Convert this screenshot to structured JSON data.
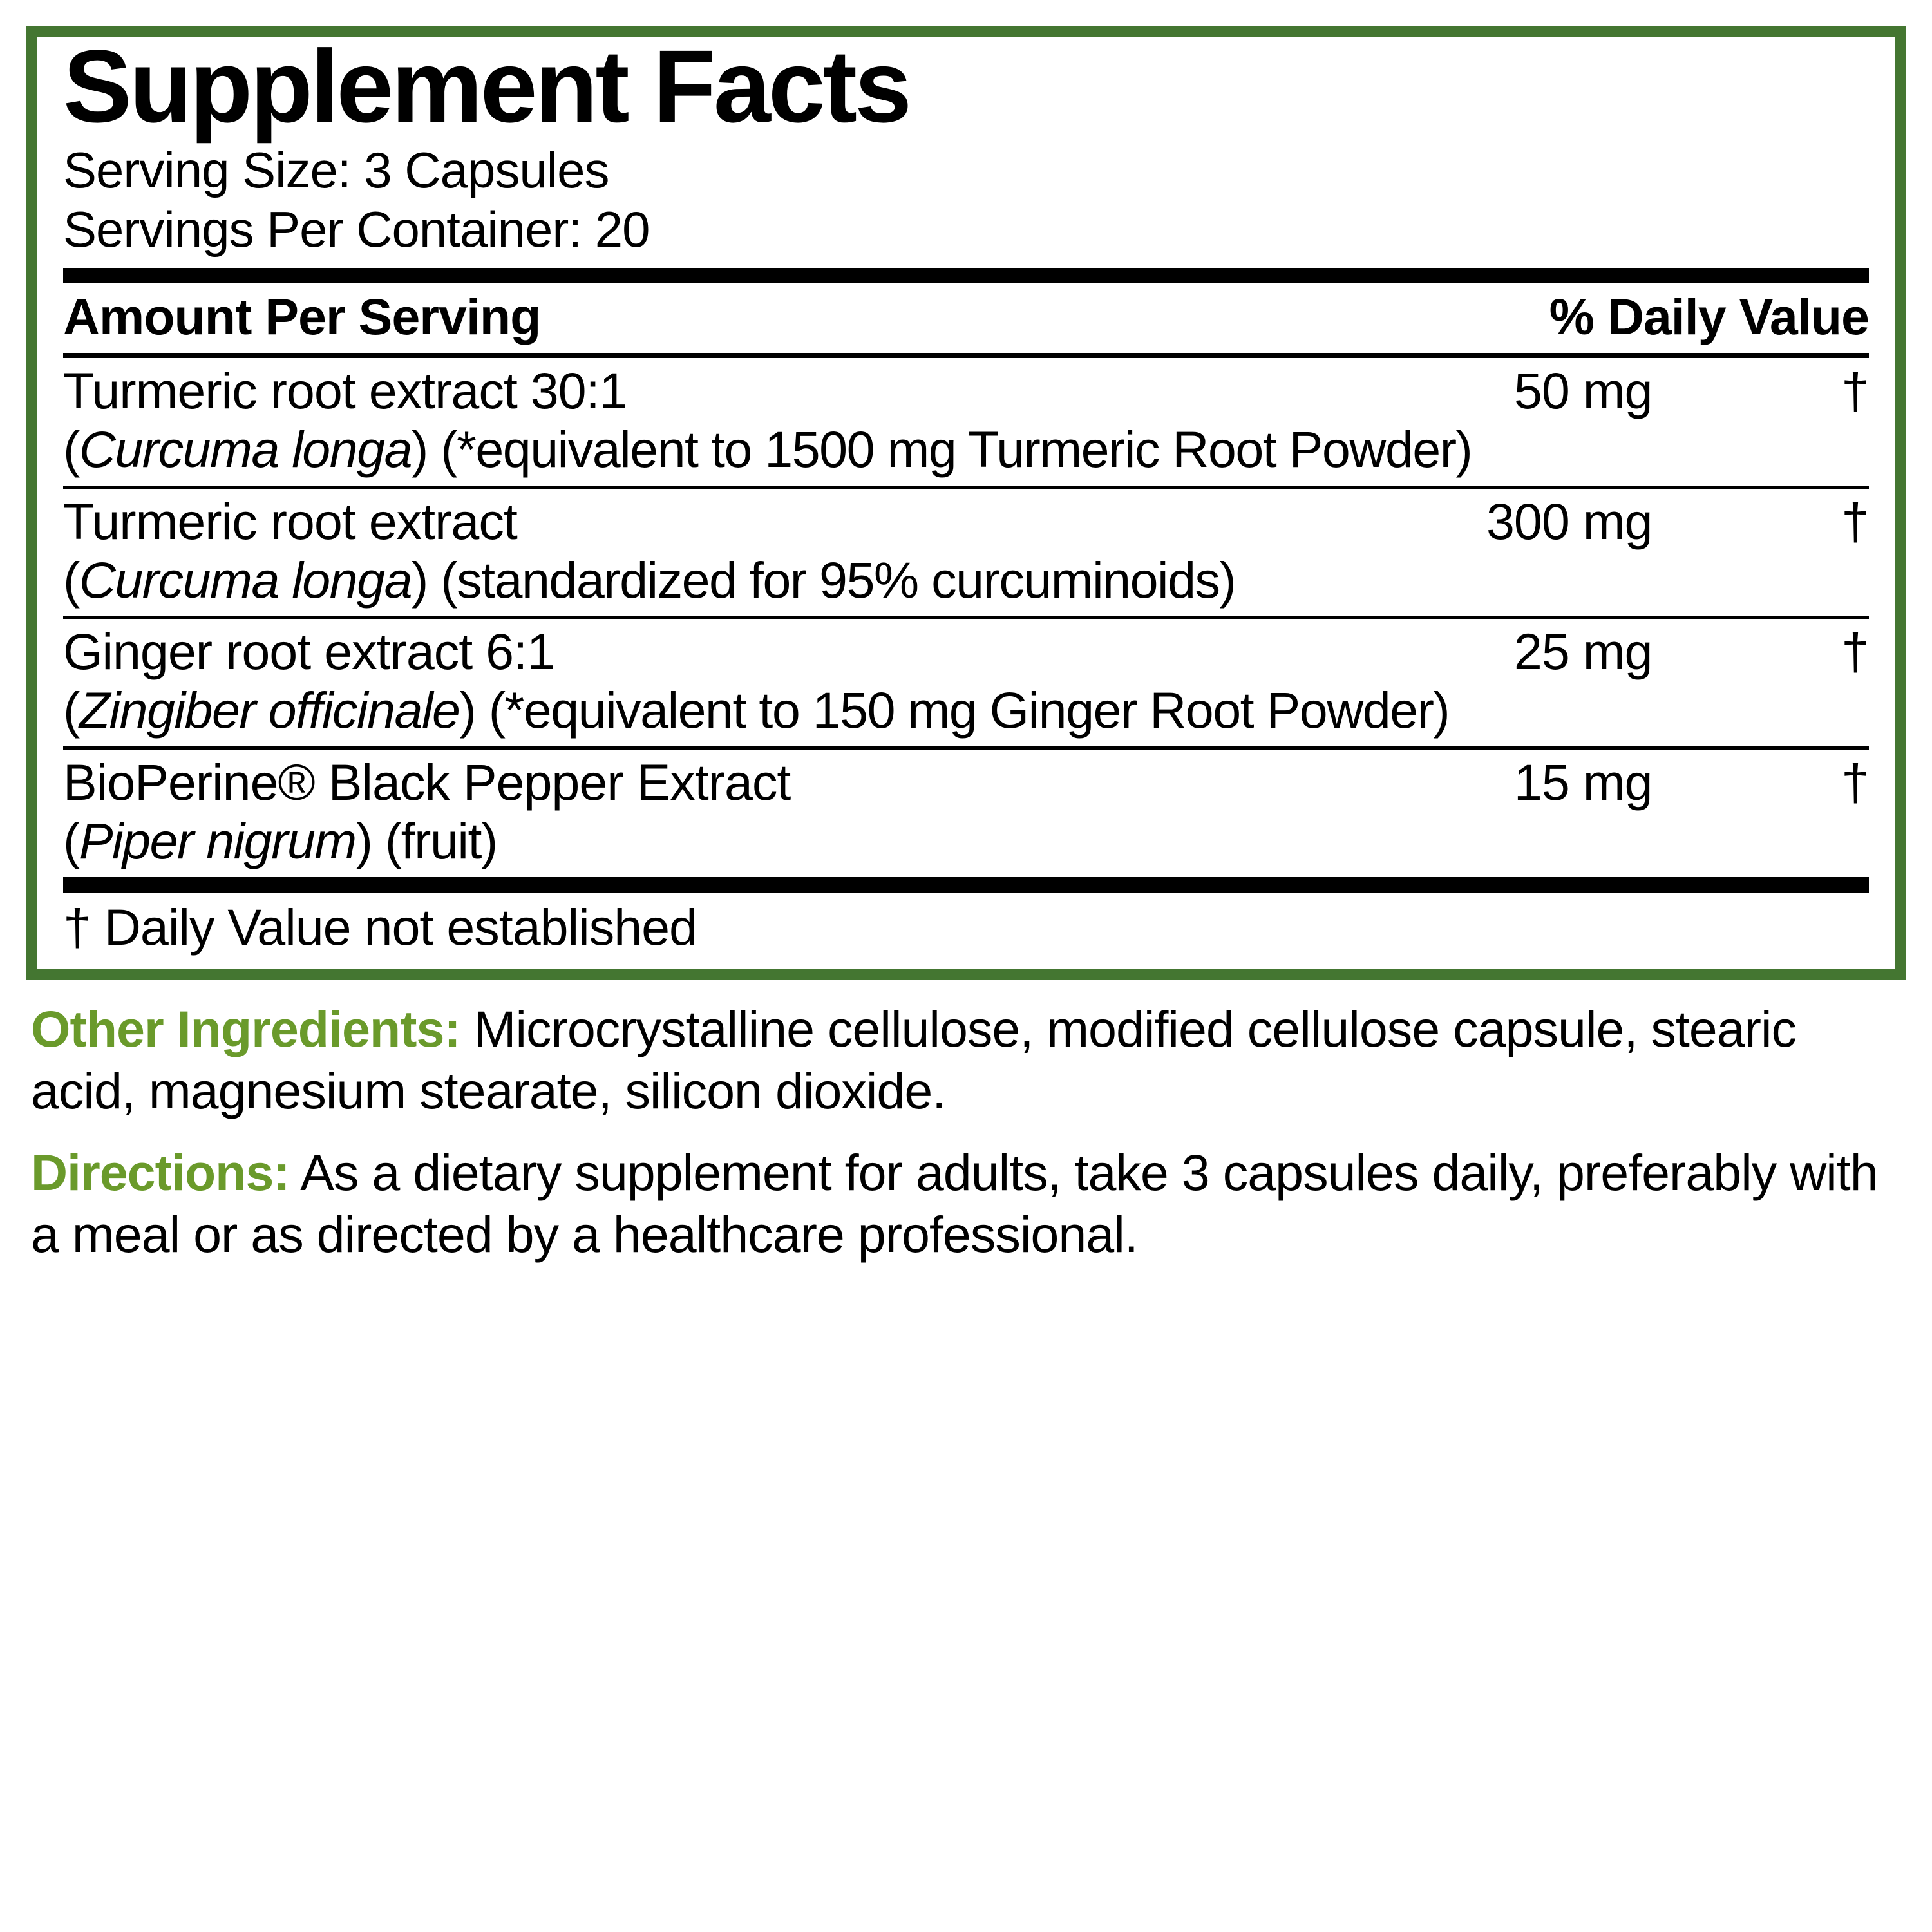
{
  "colors": {
    "border": "#447631",
    "text": "#000000",
    "greenLabel": "#6a9a2b",
    "background": "#ffffff"
  },
  "panel": {
    "title": "Supplement Facts",
    "servingSize": "Serving Size: 3 Capsules",
    "servingsPerContainer": "Servings Per Container: 20",
    "headerLeft": "Amount Per Serving",
    "headerRight": "% Daily Value",
    "footnote": "† Daily Value not established"
  },
  "ingredients": [
    {
      "name": "Turmeric root extract 30:1",
      "amount": "50 mg",
      "dv": "†",
      "subPrefix": "(",
      "latin": "Curcuma longa",
      "subSuffix": ") (*equivalent to 1500 mg Turmeric Root Powder)"
    },
    {
      "name": "Turmeric root extract",
      "amount": "300 mg",
      "dv": "†",
      "subPrefix": "(",
      "latin": "Curcuma longa",
      "subSuffix": ") (standardized for 95% curcuminoids)"
    },
    {
      "name": "Ginger root extract 6:1",
      "amount": "25 mg",
      "dv": "†",
      "subPrefix": "(",
      "latin": "Zingiber officinale",
      "subSuffix": ") (*equivalent to 150 mg Ginger Root Powder)"
    },
    {
      "name": "BioPerine® Black Pepper Extract",
      "amount": "15 mg",
      "dv": "†",
      "subPrefix": "(",
      "latin": "Piper nigrum",
      "subSuffix": ") (fruit)"
    }
  ],
  "otherIngredients": {
    "label": "Other Ingredients:",
    "text": " Microcrystalline cellulose, modified cellulose capsule, stearic acid, magnesium stearate, silicon dioxide."
  },
  "directions": {
    "label": "Directions:",
    "text": " As a dietary supplement for adults, take 3 capsules daily, preferably with a meal or as directed by a healthcare professional."
  }
}
